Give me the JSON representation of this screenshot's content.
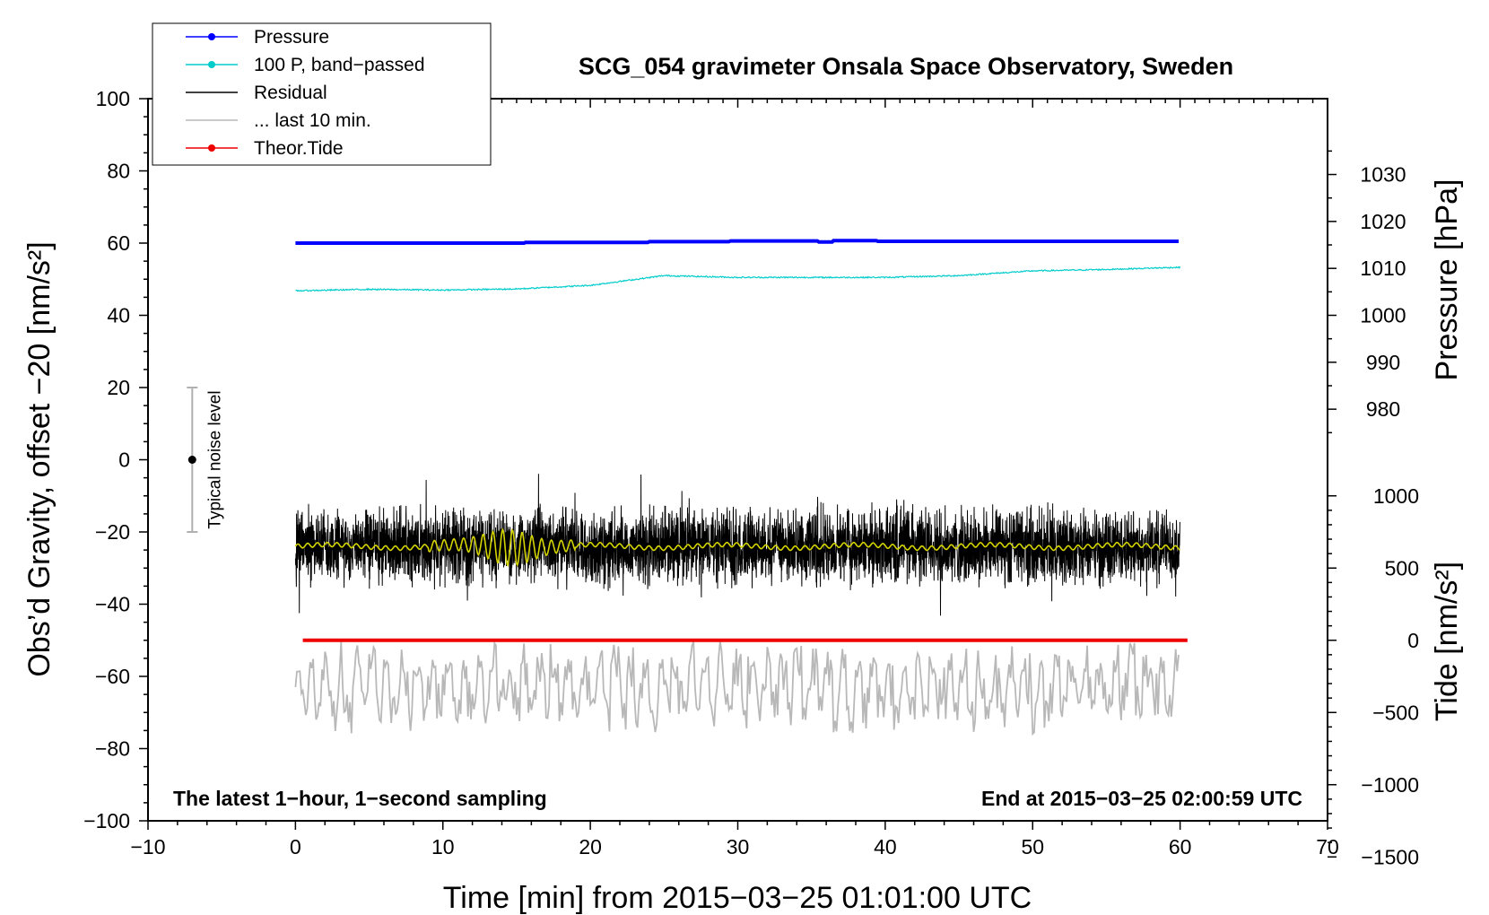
{
  "chart_data": {
    "type": "line",
    "title": "SCG_054 gravimeter Onsala Space Observatory, Sweden",
    "xlabel": "Time [min] from 2015−03−25 01:01:00 UTC",
    "ylabel_left": "Obs’d Gravity, offset −20 [nm/s²]",
    "ylabel_pressure": "Pressure [hPa]",
    "ylabel_tide": "Tide [nm/s²]",
    "xlim": [
      -10,
      70
    ],
    "ylim_left": [
      -100,
      100
    ],
    "x_ticks": [
      -10,
      0,
      10,
      20,
      30,
      40,
      50,
      60,
      70
    ],
    "x_tick_labels": [
      "−10",
      "0",
      "10",
      "20",
      "30",
      "40",
      "50",
      "60",
      "70"
    ],
    "y_ticks_left": [
      100,
      80,
      60,
      40,
      20,
      0,
      -20,
      -40,
      -60,
      -80,
      -100
    ],
    "y_tick_labels_left": [
      "100",
      "80",
      "60",
      "40",
      "20",
      "0",
      "−20",
      "−40",
      "−60",
      "−80",
      "−100"
    ],
    "pressure_axis": {
      "ticks": [
        1030,
        1020,
        1010,
        1000,
        990,
        980
      ],
      "tick_labels": [
        "1030",
        "1020",
        "1010",
        "1000",
        "990",
        "980"
      ],
      "left_value_at_1000hPa": 40,
      "left_units_per_hPa": 1.3
    },
    "tide_axis": {
      "ticks": [
        1000,
        500,
        0,
        -500,
        -1000,
        -1500
      ],
      "tick_labels": [
        "1000",
        "500",
        "0",
        "−500",
        "−1000",
        "−1500"
      ],
      "left_value_at_0": -50,
      "left_units_per_nm": 0.04
    },
    "legend": [
      {
        "label": "Pressure",
        "color": "#0000ff",
        "marker": true
      },
      {
        "label": "100 P, band−passed",
        "color": "#00cccc",
        "marker": true
      },
      {
        "label": "Residual",
        "color": "#000000",
        "marker": false
      },
      {
        "label": "... last 10 min.",
        "color": "#b8b8b8",
        "marker": false
      },
      {
        "label": "Theor.Tide",
        "color": "#ee0000",
        "marker": true
      }
    ],
    "series": [
      {
        "name": "Pressure",
        "color": "#0000ff",
        "x": [
          0,
          15.5,
          24,
          29.5,
          35.5,
          36.5,
          39.5,
          60
        ],
        "values": [
          60,
          60.2,
          60.4,
          60.6,
          60.3,
          60.7,
          60.5,
          60.7
        ]
      },
      {
        "name": "100 P, band−passed",
        "color": "#00cccc",
        "x": [
          0,
          5,
          10,
          15,
          20,
          25,
          30,
          35,
          40,
          45,
          50,
          55,
          60
        ],
        "values": [
          46.8,
          47.2,
          47,
          47.3,
          48.3,
          51,
          50.5,
          50.5,
          50.5,
          51,
          52.3,
          52.7,
          53.3
        ]
      },
      {
        "name": "Residual",
        "color": "#000000",
        "x": [
          0,
          60
        ],
        "center": -24,
        "typical_amplitude": 10,
        "max": 2,
        "min": -50
      },
      {
        "name": "Residual smoothed",
        "color": "#d4d400",
        "x": [
          0,
          60
        ],
        "center": -24
      },
      {
        "name": "... last 10 min.",
        "color": "#b8b8b8",
        "x": [
          0,
          60
        ],
        "center": -63,
        "range": [
          -79,
          -43
        ]
      },
      {
        "name": "Theor.Tide",
        "color": "#ee0000",
        "x": [
          0.5,
          60.5
        ],
        "values": [
          -50,
          -50
        ]
      }
    ],
    "noise_bar": {
      "x": -7,
      "center": 0,
      "low": -20,
      "high": 20,
      "label": "Typical noise level"
    },
    "annotation_left": "The latest 1−hour, 1−second sampling",
    "annotation_right": "End at 2015−03−25 02:00:59 UTC"
  }
}
